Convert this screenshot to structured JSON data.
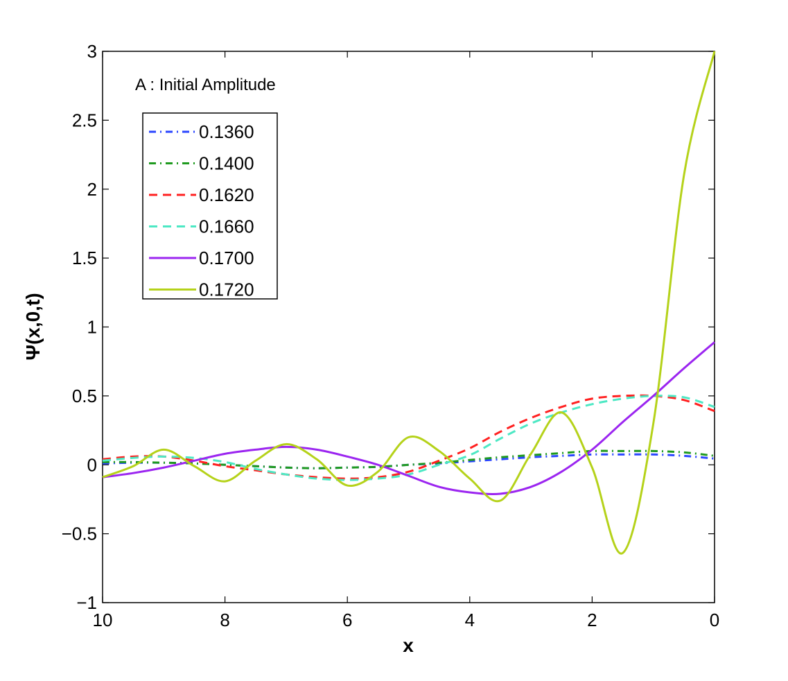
{
  "chart_data": {
    "type": "line",
    "xlabel": "x",
    "ylabel": "Ψ(x,0,t)",
    "xlim": [
      10,
      0
    ],
    "ylim": [
      -1,
      3
    ],
    "x_reversed": true,
    "x_ticks": [
      10,
      8,
      6,
      4,
      2,
      0
    ],
    "y_ticks": [
      -1,
      -0.5,
      0,
      0.5,
      1,
      1.5,
      2,
      2.5,
      3
    ],
    "x_tick_labels": [
      "10",
      "8",
      "6",
      "4",
      "2",
      "0"
    ],
    "y_tick_labels": [
      "−1",
      "−0.5",
      "0",
      "0.5",
      "1",
      "1.5",
      "2",
      "2.5",
      "3"
    ],
    "grid": false,
    "legend_position": "top-left",
    "annotation": "A : Initial Amplitude",
    "x": [
      10,
      9.5,
      9,
      8.5,
      8,
      7.5,
      7,
      6.5,
      6,
      5.5,
      5,
      4.5,
      4,
      3.5,
      3,
      2.5,
      2,
      1.5,
      1,
      0.5,
      0
    ],
    "series": [
      {
        "name": "0.1360",
        "color": "#2b46ff",
        "dash": "dashdot",
        "values": [
          0.01,
          0.015,
          0.015,
          0.01,
          0.0,
          -0.01,
          -0.02,
          -0.025,
          -0.02,
          -0.015,
          0.0,
          0.01,
          0.025,
          0.04,
          0.055,
          0.065,
          0.075,
          0.075,
          0.075,
          0.065,
          0.045
        ]
      },
      {
        "name": "0.1400",
        "color": "#1f9a1f",
        "dash": "dashdot",
        "values": [
          0.02,
          0.02,
          0.015,
          0.01,
          0.0,
          -0.01,
          -0.02,
          -0.025,
          -0.02,
          -0.015,
          0.0,
          0.015,
          0.035,
          0.055,
          0.07,
          0.085,
          0.1,
          0.1,
          0.1,
          0.09,
          0.065
        ]
      },
      {
        "name": "0.1620",
        "color": "#ff2020",
        "dash": "dashed",
        "values": [
          0.04,
          0.06,
          0.06,
          0.03,
          -0.01,
          -0.04,
          -0.07,
          -0.09,
          -0.1,
          -0.09,
          -0.05,
          0.03,
          0.12,
          0.24,
          0.34,
          0.42,
          0.48,
          0.5,
          0.5,
          0.47,
          0.39
        ]
      },
      {
        "name": "0.1660",
        "color": "#4de8c4",
        "dash": "dashed",
        "values": [
          0.03,
          0.05,
          0.06,
          0.05,
          0.02,
          -0.03,
          -0.07,
          -0.1,
          -0.11,
          -0.1,
          -0.07,
          0.0,
          0.07,
          0.19,
          0.3,
          0.38,
          0.44,
          0.48,
          0.5,
          0.49,
          0.42
        ]
      },
      {
        "name": "0.1700",
        "color": "#9b25f0",
        "dash": "solid",
        "values": [
          -0.09,
          -0.06,
          -0.02,
          0.03,
          0.08,
          0.11,
          0.13,
          0.11,
          0.06,
          0.0,
          -0.08,
          -0.16,
          -0.2,
          -0.21,
          -0.16,
          -0.05,
          0.11,
          0.31,
          0.5,
          0.7,
          0.89
        ]
      },
      {
        "name": "0.1720",
        "color": "#b5d21a",
        "dash": "solid",
        "values": [
          -0.09,
          -0.01,
          0.11,
          -0.01,
          -0.12,
          0.03,
          0.15,
          0.04,
          -0.15,
          -0.05,
          0.2,
          0.1,
          -0.1,
          -0.26,
          0.08,
          0.38,
          -0.02,
          -0.64,
          0.3,
          2.1,
          3.0
        ]
      }
    ]
  }
}
